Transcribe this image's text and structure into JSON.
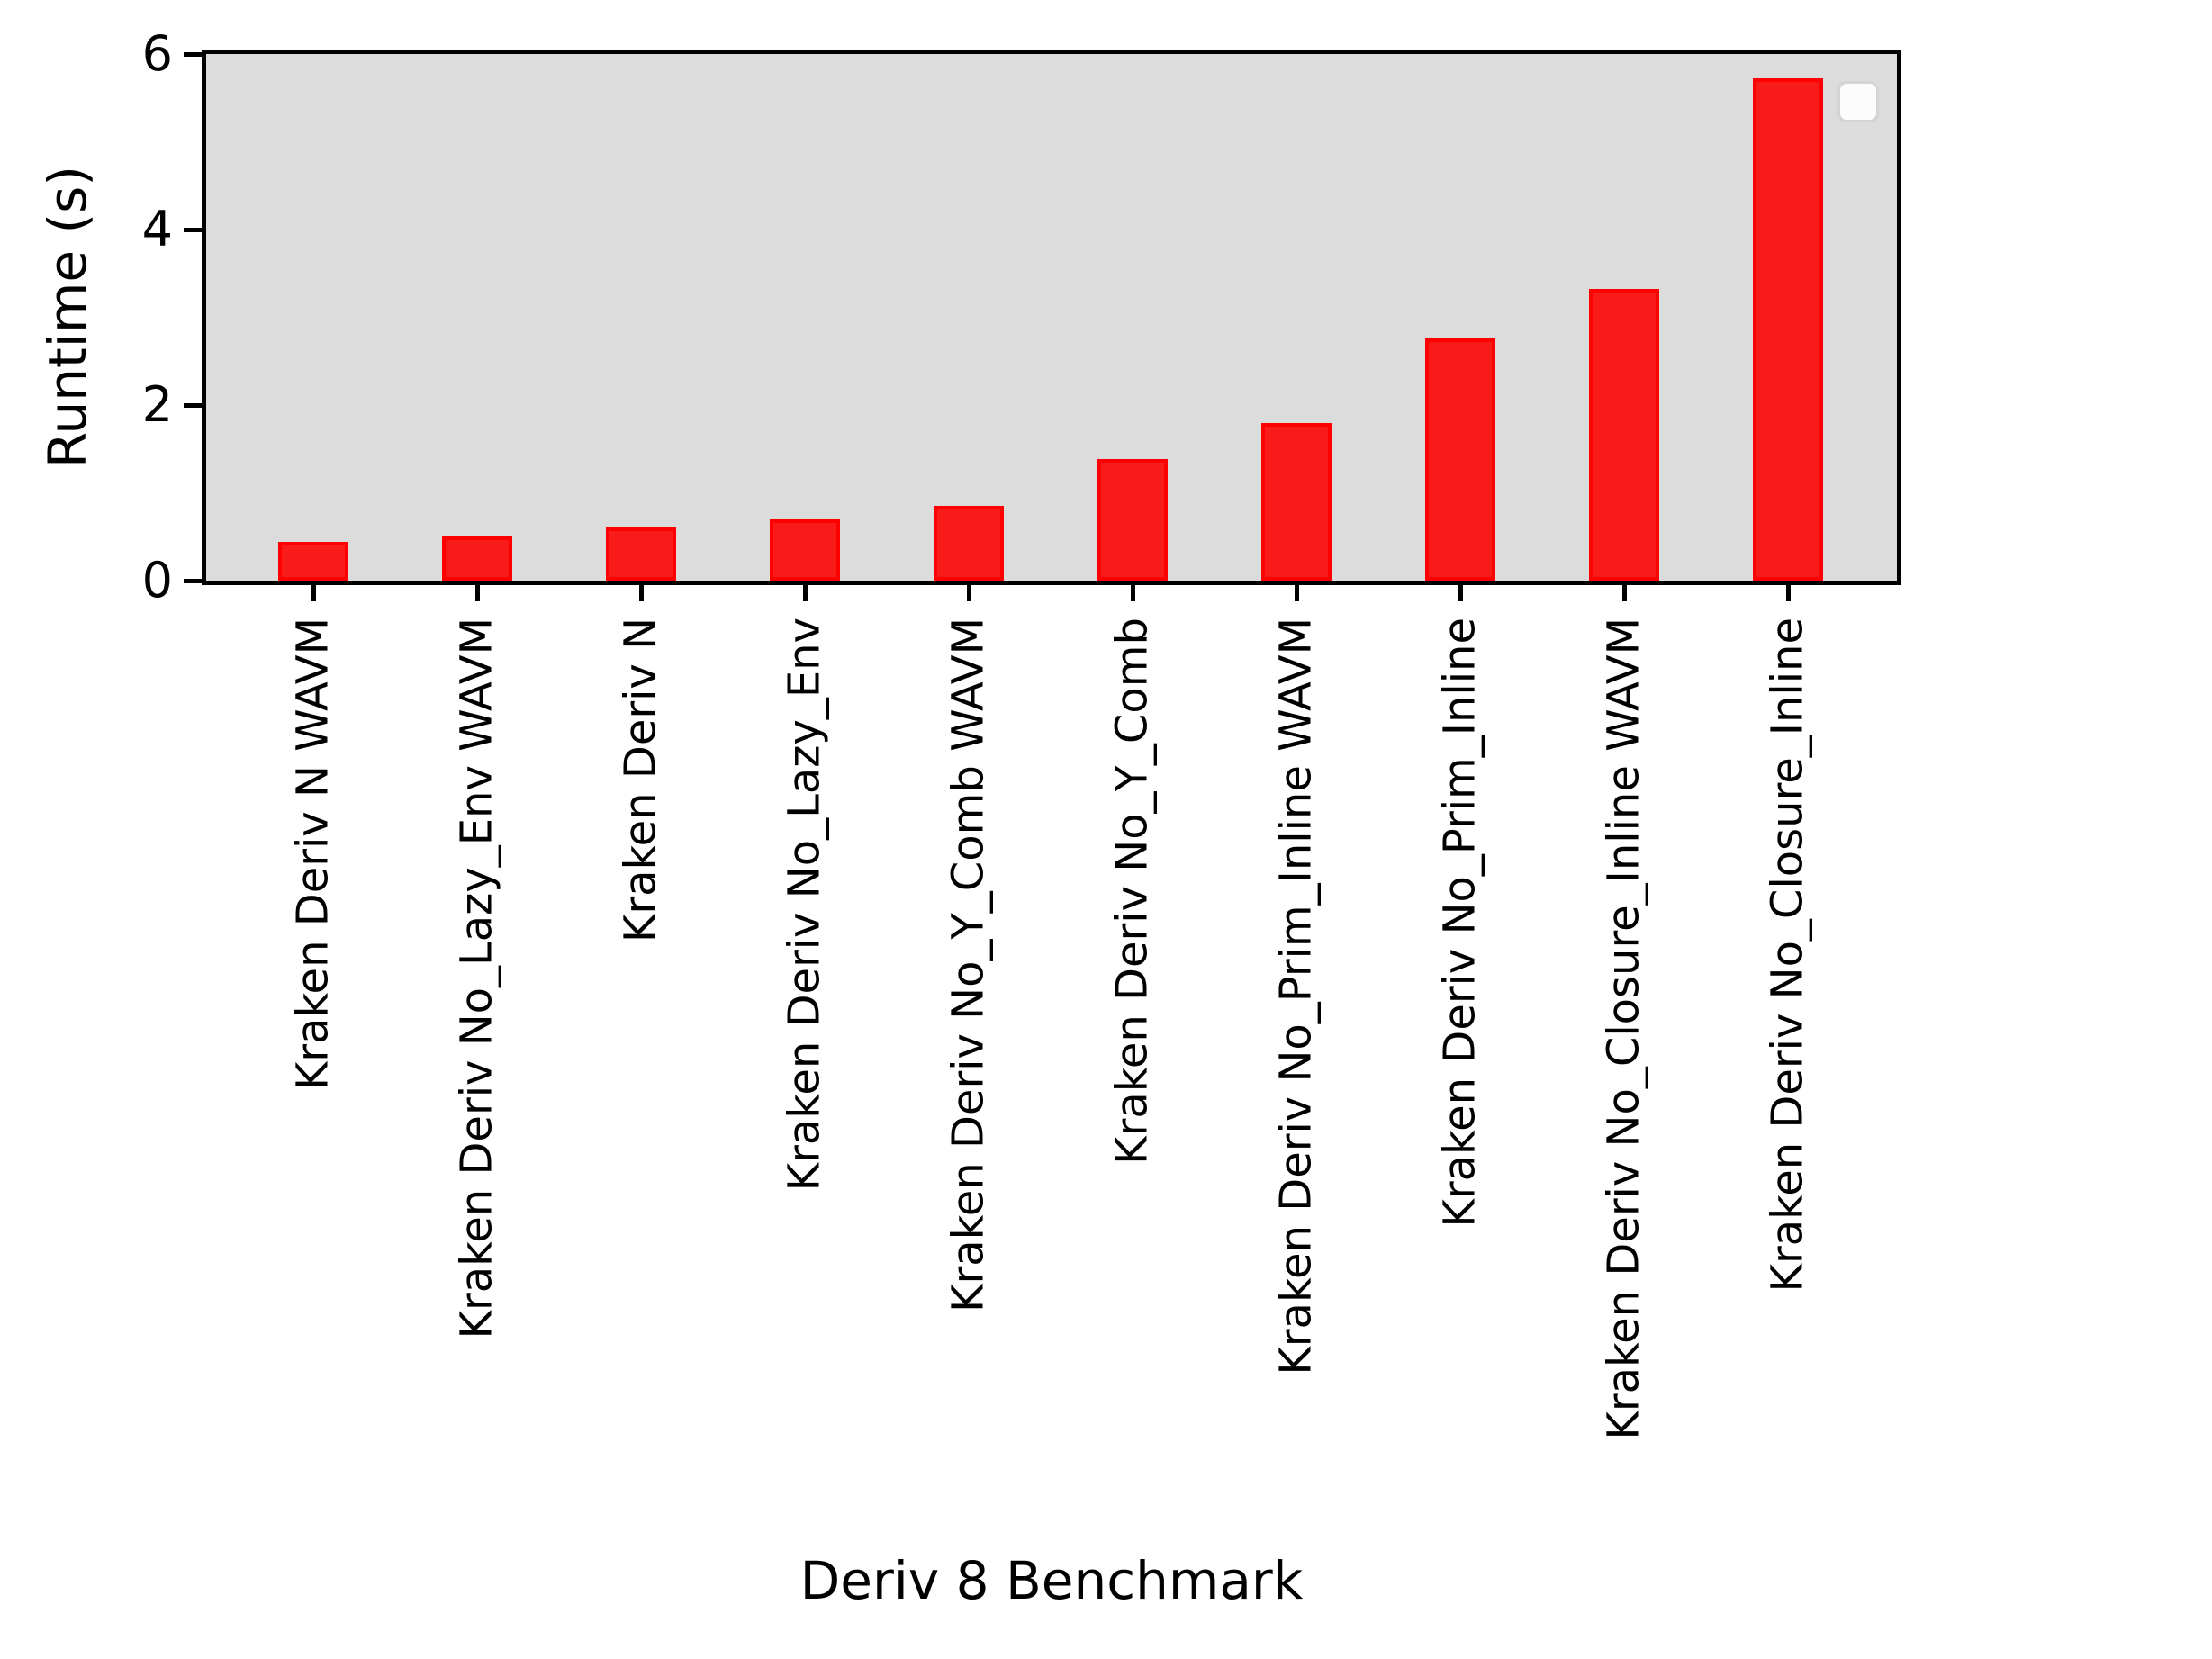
{
  "chart_data": {
    "type": "bar",
    "title": "",
    "xlabel": "Deriv 8 Benchmark",
    "ylabel": "Runtime (s)",
    "categories": [
      "Kraken Deriv N WAVM",
      "Kraken Deriv No_Lazy_Env WAVM",
      "Kraken Deriv N",
      "Kraken Deriv No_Lazy_Env",
      "Kraken Deriv No_Y_Comb WAVM",
      "Kraken Deriv No_Y_Comb",
      "Kraken Deriv No_Prim_Inline WAVM",
      "Kraken Deriv No_Prim_Inline",
      "Kraken Deriv No_Closure_Inline WAVM",
      "Kraken Deriv No_Closure_Inline"
    ],
    "values": [
      0.44,
      0.5,
      0.61,
      0.7,
      0.85,
      1.38,
      1.8,
      2.76,
      3.32,
      5.72
    ],
    "ylim": [
      0,
      6
    ],
    "yticks": [
      0,
      2,
      4,
      6
    ],
    "xtick_rotation": 90,
    "grid": false,
    "legend": {
      "visible": true,
      "position": "upper right",
      "entries": []
    },
    "colors": {
      "bar_fill": "#f91a1a",
      "bar_edge": "#ff0000",
      "plot_background": "#dcdcdc",
      "figure_background": "#ffffff",
      "spine": "#000000",
      "text": "#000000",
      "legend_background": "#fcfcfc",
      "legend_border": "#d4d4d4"
    }
  }
}
